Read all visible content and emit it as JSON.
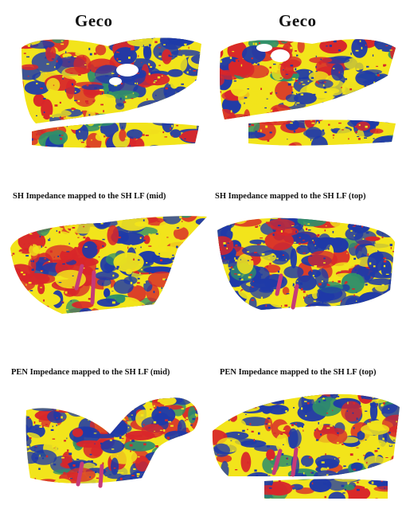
{
  "panels": {
    "top_left": {
      "title": "Geco"
    },
    "top_right": {
      "title": "Geco"
    },
    "mid_left": {
      "caption": "SH Impedance mapped to the SH LF (mid)"
    },
    "mid_right": {
      "caption": "SH Impedance mapped to the SH LF (top)"
    },
    "bot_left": {
      "caption": "PEN Impedance mapped to the SH LF (mid)"
    },
    "bot_right": {
      "caption": "PEN Impedance mapped to the SH LF (top)"
    }
  },
  "palette": {
    "low": "#1f3aa8",
    "mid_low": "#2f8f6a",
    "mid": "#f2e41b",
    "high": "#d8262a",
    "well_marker": "#c63a78"
  }
}
